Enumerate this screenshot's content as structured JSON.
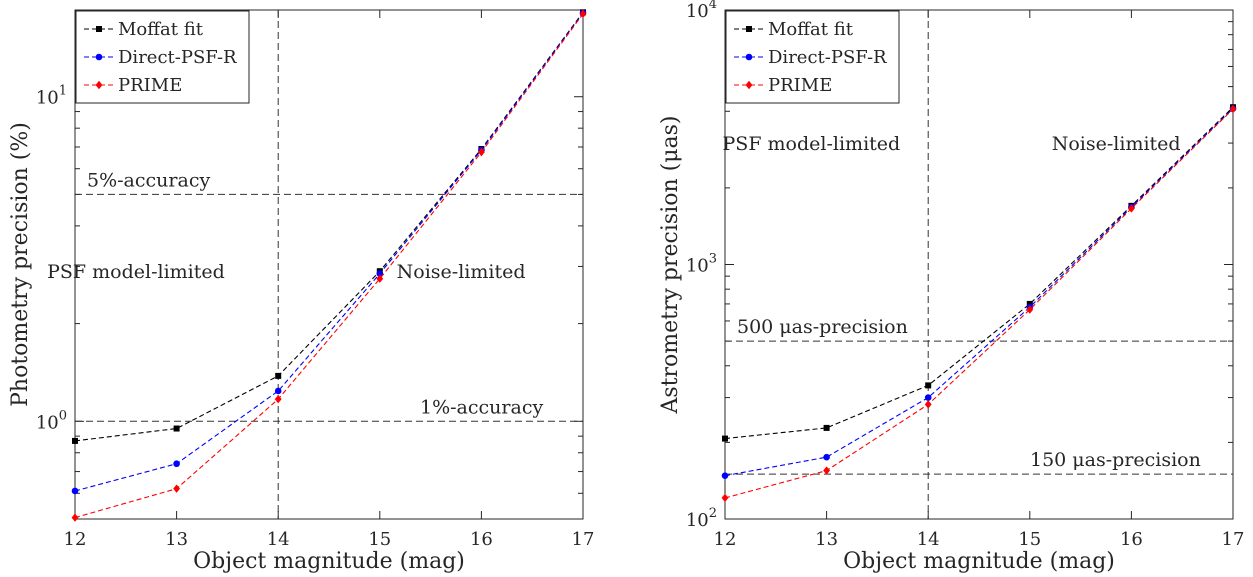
{
  "chart_data": [
    {
      "type": "line",
      "xlabel": "Object magnitude (mag)",
      "ylabel": "Photometry precision (%)",
      "yscale": "log",
      "xlim": [
        12,
        17
      ],
      "ylim": [
        0.5,
        18.5
      ],
      "x": [
        12,
        13,
        14,
        15,
        16,
        17
      ],
      "xticks": [
        "12",
        "13",
        "14",
        "15",
        "16",
        "17"
      ],
      "yticks": [
        {
          "value": 1,
          "base": "10",
          "exp": "0"
        },
        {
          "value": 10,
          "base": "10",
          "exp": "1"
        }
      ],
      "series": [
        {
          "name": "Moffat fit",
          "color": "#000000",
          "marker": "square",
          "values": [
            0.87,
            0.95,
            1.38,
            2.9,
            6.9,
            18.2
          ]
        },
        {
          "name": "Direct-PSF-R",
          "color": "#0000ff",
          "marker": "circle",
          "values": [
            0.61,
            0.74,
            1.24,
            2.85,
            6.85,
            18.1
          ]
        },
        {
          "name": "PRIME",
          "color": "#ff0000",
          "marker": "diamond",
          "values": [
            0.505,
            0.62,
            1.17,
            2.75,
            6.75,
            18.0
          ]
        }
      ],
      "hlines": [
        {
          "y": 5,
          "label": "5%-accuracy"
        },
        {
          "y": 1,
          "label": "1%-accuracy"
        }
      ],
      "vlines": [
        {
          "x": 14
        }
      ],
      "regions": [
        {
          "label": "PSF model-limited",
          "x": 12.6,
          "y": 2.9
        },
        {
          "label": "Noise-limited",
          "x": 15.8,
          "y": 2.9
        }
      ],
      "legend": "top-left",
      "grid": false
    },
    {
      "type": "line",
      "xlabel": "Object magnitude (mag)",
      "ylabel": "Astrometry precision (μas)",
      "yscale": "log",
      "xlim": [
        12,
        17
      ],
      "ylim": [
        100,
        10000
      ],
      "x": [
        12,
        13,
        14,
        15,
        16,
        17
      ],
      "xticks": [
        "12",
        "13",
        "14",
        "15",
        "16",
        "17"
      ],
      "yticks": [
        {
          "value": 100,
          "base": "10",
          "exp": "2"
        },
        {
          "value": 1000,
          "base": "10",
          "exp": "3"
        },
        {
          "value": 10000,
          "base": "10",
          "exp": "4"
        }
      ],
      "series": [
        {
          "name": "Moffat fit",
          "color": "#000000",
          "marker": "square",
          "values": [
            207,
            228,
            335,
            700,
            1700,
            4150
          ]
        },
        {
          "name": "Direct-PSF-R",
          "color": "#0000ff",
          "marker": "circle",
          "values": [
            148,
            175,
            300,
            680,
            1680,
            4100
          ]
        },
        {
          "name": "PRIME",
          "color": "#ff0000",
          "marker": "diamond",
          "values": [
            121,
            155,
            282,
            665,
            1660,
            4080
          ]
        }
      ],
      "hlines": [
        {
          "y": 500,
          "label": "500 μas-precision"
        },
        {
          "y": 150,
          "label": "150 μas-precision"
        }
      ],
      "vlines": [
        {
          "x": 14
        }
      ],
      "regions": [
        {
          "label": "PSF model-limited",
          "x": 12.85,
          "y": 3000
        },
        {
          "label": "Noise-limited",
          "x": 15.85,
          "y": 3000
        }
      ],
      "legend": "top-left",
      "grid": false
    }
  ]
}
